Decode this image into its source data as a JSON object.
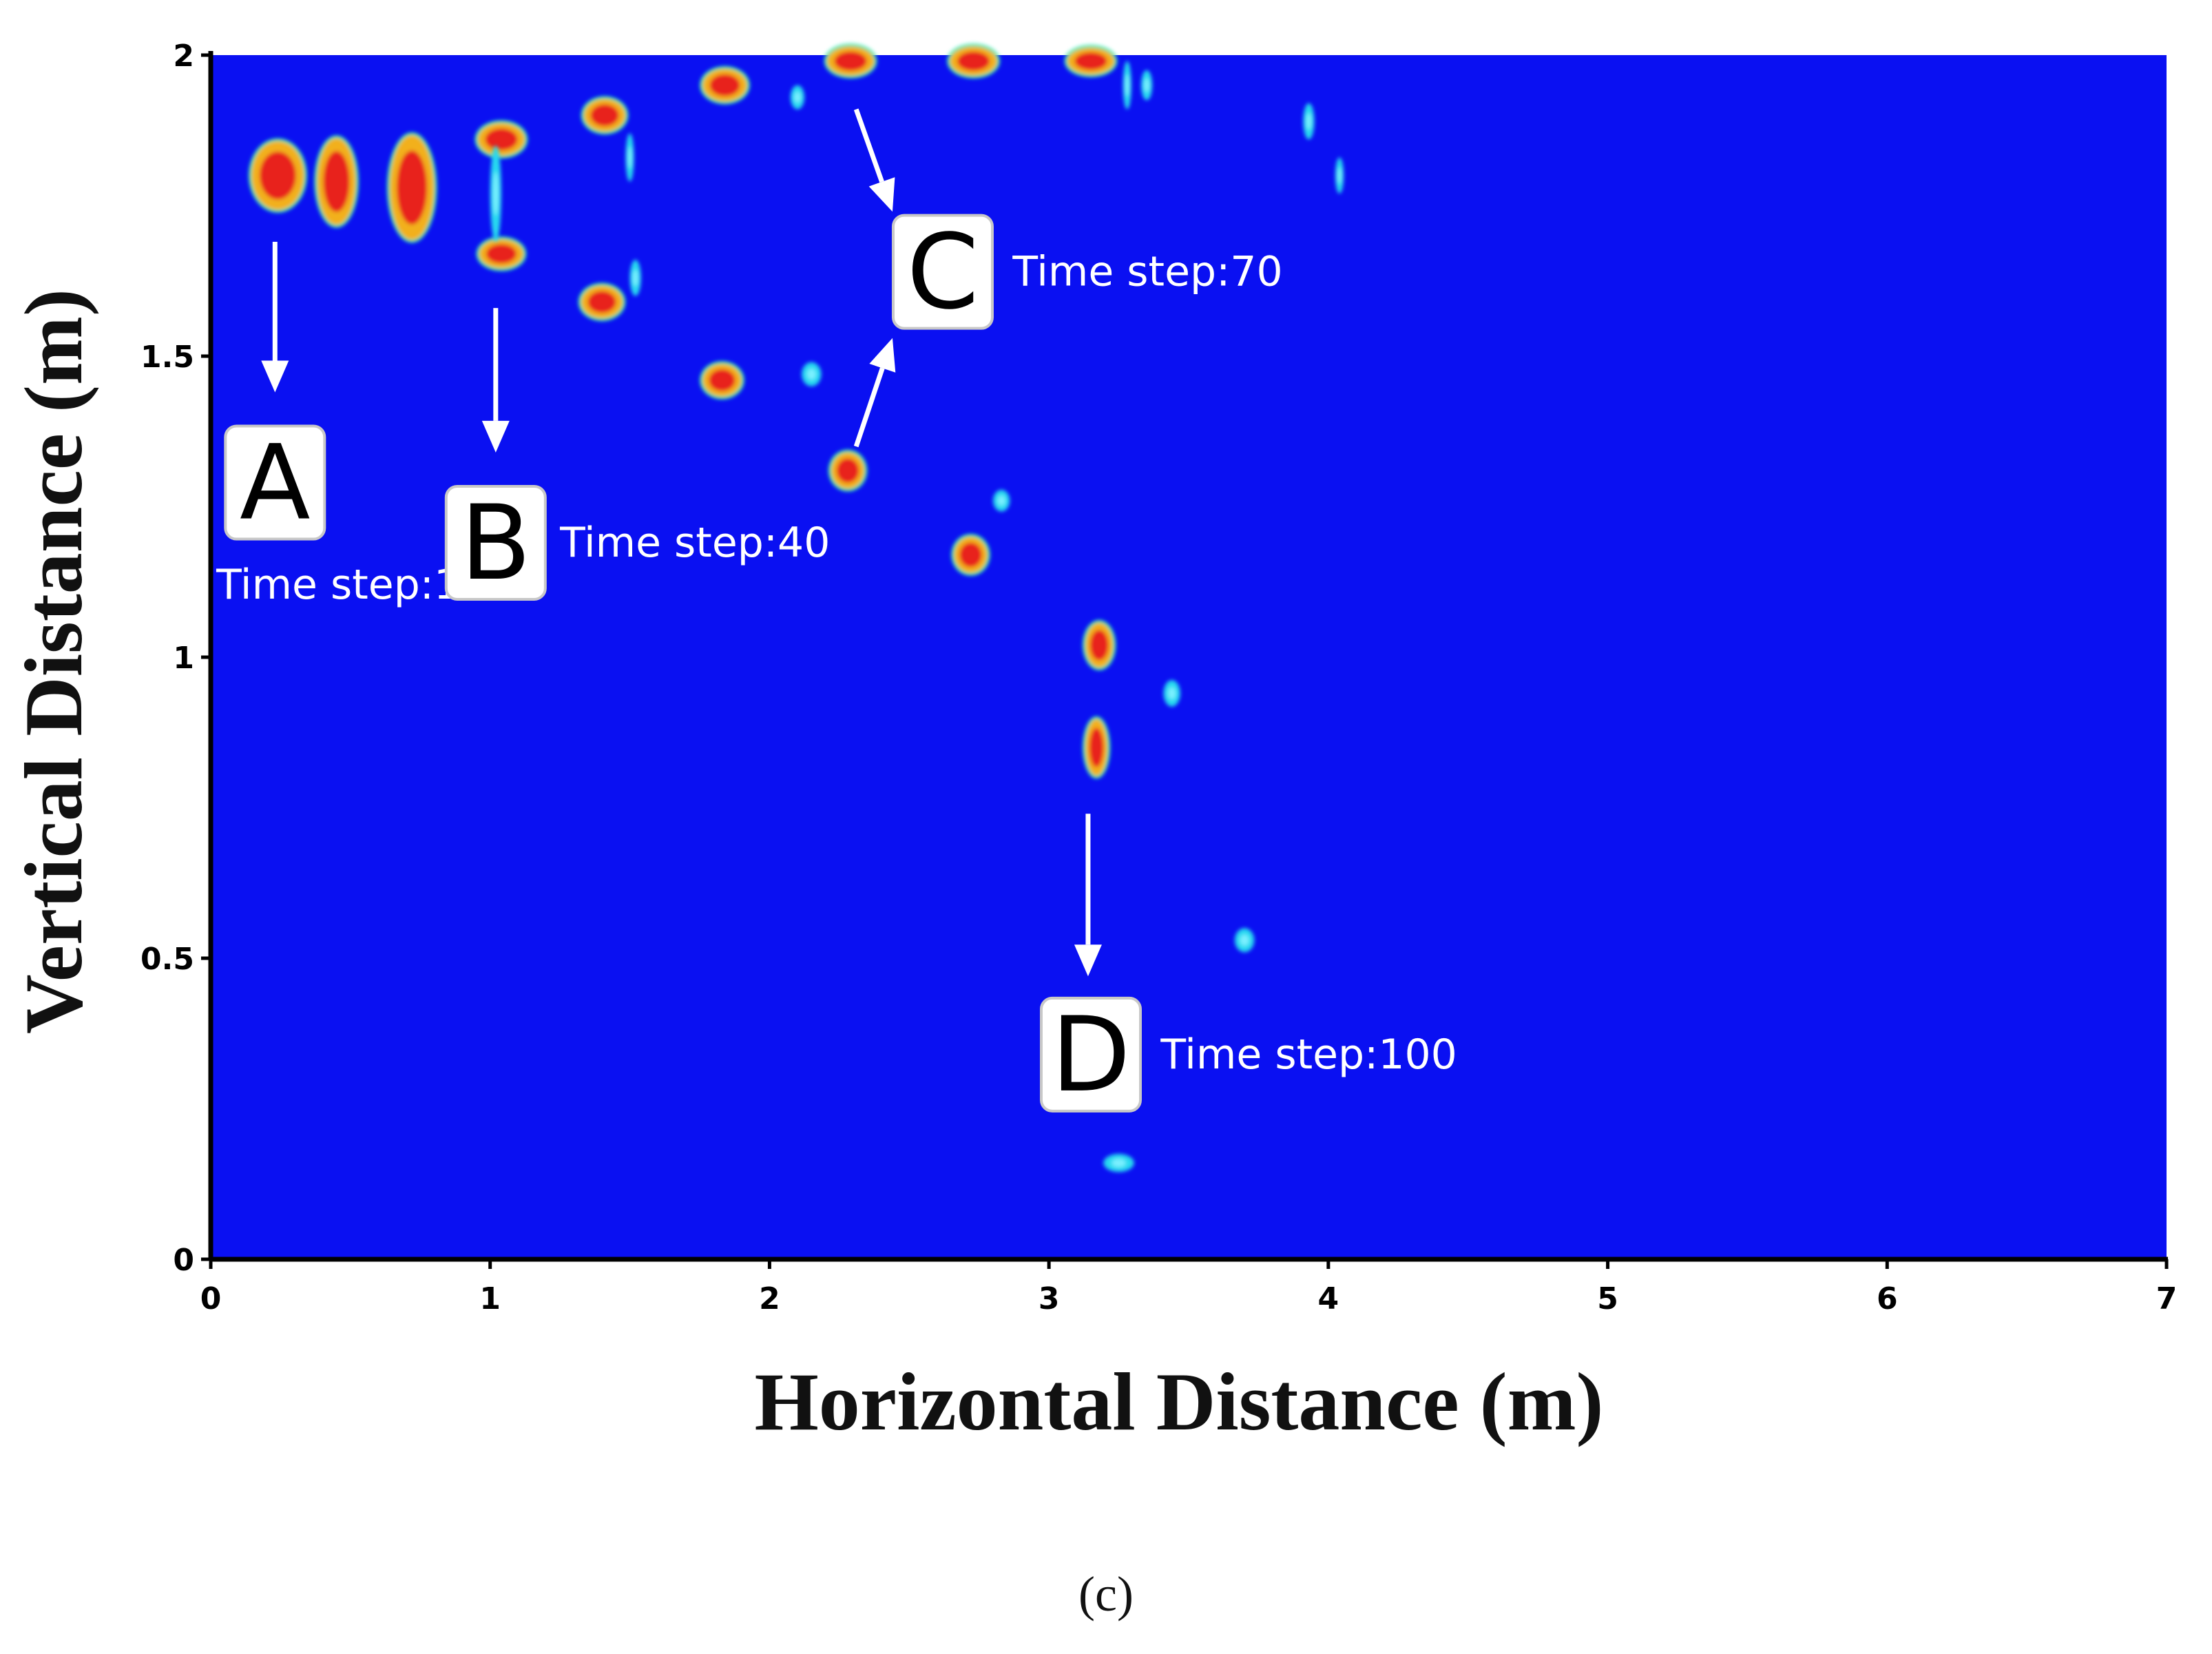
{
  "chart_data": {
    "type": "scatter",
    "title": "",
    "xlabel": "Horizontal Distance (m)",
    "ylabel": "Vertical Distance (m)",
    "xlim": [
      0,
      7
    ],
    "ylim": [
      0,
      2
    ],
    "x_ticks": [
      "0",
      "1",
      "2",
      "3",
      "4",
      "5",
      "6",
      "7"
    ],
    "y_ticks": [
      "0",
      "0.5",
      "1",
      "1.5",
      "2"
    ],
    "grid": false,
    "legend": "none",
    "background_color": "#0a10f2",
    "colors": {
      "core": "#e8231a",
      "halo": "#f2b01a",
      "rim": "#20e8b0",
      "cyan": "#25d9f0"
    },
    "blobs": [
      {
        "x": 0.24,
        "y": 1.8,
        "rx": 0.09,
        "ry": 0.055,
        "kind": "red"
      },
      {
        "x": 0.45,
        "y": 1.79,
        "rx": 0.065,
        "ry": 0.07,
        "kind": "red"
      },
      {
        "x": 0.72,
        "y": 1.78,
        "rx": 0.075,
        "ry": 0.085,
        "kind": "red"
      },
      {
        "x": 1.04,
        "y": 1.86,
        "rx": 0.08,
        "ry": 0.025,
        "kind": "red"
      },
      {
        "x": 1.04,
        "y": 1.67,
        "rx": 0.075,
        "ry": 0.022,
        "kind": "red"
      },
      {
        "x": 1.02,
        "y": 1.77,
        "rx": 0.02,
        "ry": 0.08,
        "kind": "cyan"
      },
      {
        "x": 1.41,
        "y": 1.9,
        "rx": 0.07,
        "ry": 0.025,
        "kind": "red"
      },
      {
        "x": 1.5,
        "y": 1.83,
        "rx": 0.015,
        "ry": 0.04,
        "kind": "cyan"
      },
      {
        "x": 1.4,
        "y": 1.59,
        "rx": 0.07,
        "ry": 0.025,
        "kind": "red"
      },
      {
        "x": 1.52,
        "y": 1.63,
        "rx": 0.02,
        "ry": 0.03,
        "kind": "cyan"
      },
      {
        "x": 1.84,
        "y": 1.95,
        "rx": 0.075,
        "ry": 0.025,
        "kind": "red"
      },
      {
        "x": 2.1,
        "y": 1.93,
        "rx": 0.025,
        "ry": 0.02,
        "kind": "cyan"
      },
      {
        "x": 1.83,
        "y": 1.46,
        "rx": 0.065,
        "ry": 0.025,
        "kind": "red"
      },
      {
        "x": 2.15,
        "y": 1.47,
        "rx": 0.035,
        "ry": 0.02,
        "kind": "cyan"
      },
      {
        "x": 2.29,
        "y": 1.99,
        "rx": 0.08,
        "ry": 0.022,
        "kind": "red"
      },
      {
        "x": 2.28,
        "y": 1.31,
        "rx": 0.055,
        "ry": 0.028,
        "kind": "red"
      },
      {
        "x": 2.73,
        "y": 1.99,
        "rx": 0.08,
        "ry": 0.022,
        "kind": "red"
      },
      {
        "x": 2.83,
        "y": 1.26,
        "rx": 0.03,
        "ry": 0.018,
        "kind": "cyan"
      },
      {
        "x": 2.72,
        "y": 1.17,
        "rx": 0.055,
        "ry": 0.028,
        "kind": "red"
      },
      {
        "x": 3.15,
        "y": 1.99,
        "rx": 0.08,
        "ry": 0.02,
        "kind": "red"
      },
      {
        "x": 3.28,
        "y": 1.95,
        "rx": 0.015,
        "ry": 0.04,
        "kind": "cyan"
      },
      {
        "x": 3.35,
        "y": 1.95,
        "rx": 0.02,
        "ry": 0.025,
        "kind": "cyan"
      },
      {
        "x": 3.18,
        "y": 1.02,
        "rx": 0.045,
        "ry": 0.035,
        "kind": "red"
      },
      {
        "x": 3.44,
        "y": 0.94,
        "rx": 0.03,
        "ry": 0.022,
        "kind": "cyan"
      },
      {
        "x": 3.17,
        "y": 0.85,
        "rx": 0.035,
        "ry": 0.045,
        "kind": "red"
      },
      {
        "x": 3.93,
        "y": 1.89,
        "rx": 0.02,
        "ry": 0.03,
        "kind": "cyan"
      },
      {
        "x": 4.04,
        "y": 1.8,
        "rx": 0.015,
        "ry": 0.03,
        "kind": "cyan"
      },
      {
        "x": 3.7,
        "y": 0.53,
        "rx": 0.035,
        "ry": 0.02,
        "kind": "cyan"
      },
      {
        "x": 3.25,
        "y": 0.16,
        "rx": 0.055,
        "ry": 0.015,
        "kind": "cyan"
      }
    ],
    "annotations": [
      {
        "letter": "A",
        "label": "Time step:1",
        "box_x": 0.23,
        "box_y": 1.29,
        "label_x": 0.02,
        "label_y": 1.12,
        "label_anchor": "start"
      },
      {
        "letter": "B",
        "label": "Time step:40",
        "box_x": 1.02,
        "box_y": 1.19,
        "label_x": 1.25,
        "label_y": 1.19,
        "label_anchor": "start"
      },
      {
        "letter": "C",
        "label": "Time step:70",
        "box_x": 2.62,
        "box_y": 1.64,
        "label_x": 2.87,
        "label_y": 1.64,
        "label_anchor": "start"
      },
      {
        "letter": "D",
        "label": "Time step:100",
        "box_x": 3.15,
        "box_y": 0.34,
        "label_x": 3.4,
        "label_y": 0.34,
        "label_anchor": "start"
      }
    ],
    "arrows": [
      {
        "x1": 0.23,
        "y1": 1.69,
        "x2": 0.23,
        "y2": 1.44
      },
      {
        "x1": 1.02,
        "y1": 1.58,
        "x2": 1.02,
        "y2": 1.34
      },
      {
        "x1": 2.31,
        "y1": 1.91,
        "x2": 2.44,
        "y2": 1.74
      },
      {
        "x1": 2.31,
        "y1": 1.35,
        "x2": 2.44,
        "y2": 1.53
      },
      {
        "x1": 3.14,
        "y1": 0.74,
        "x2": 3.14,
        "y2": 0.47
      }
    ]
  },
  "caption": "(c)"
}
